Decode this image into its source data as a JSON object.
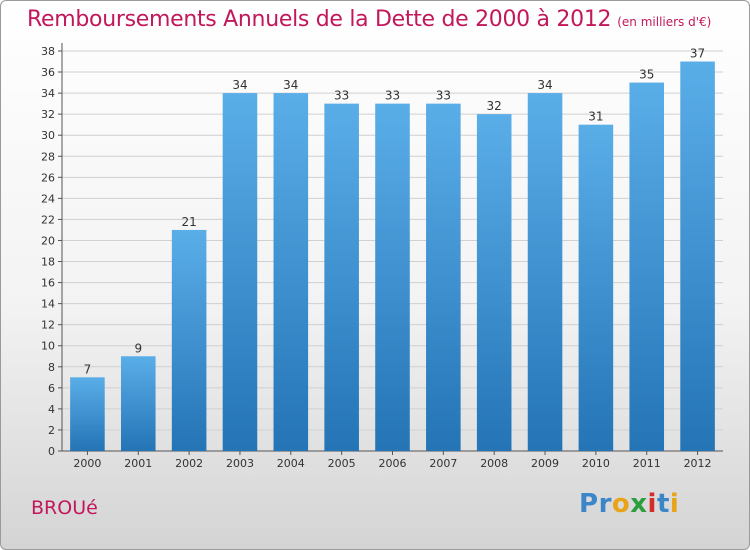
{
  "header": {
    "title": "Remboursements Annuels de la Dette de 2000 à 2012",
    "subtitle": "(en milliers d'€)"
  },
  "footer": {
    "commune": "BROUé",
    "logo_text": "Proxiti"
  },
  "colors": {
    "title": "#c2185b",
    "bar_top": "#5aaee8",
    "bar_bottom": "#2474b6",
    "logo_letters": [
      "#3a86c8",
      "#3a86c8",
      "#e8a317",
      "#2e9e3c",
      "#d52b2b",
      "#3a86c8",
      "#e8a317"
    ]
  },
  "chart_data": {
    "type": "bar",
    "categories": [
      "2000",
      "2001",
      "2002",
      "2003",
      "2004",
      "2005",
      "2006",
      "2007",
      "2008",
      "2009",
      "2010",
      "2011",
      "2012"
    ],
    "values": [
      7,
      9,
      21,
      34,
      34,
      33,
      33,
      33,
      32,
      34,
      31,
      35,
      37
    ],
    "title": "Remboursements Annuels de la Dette de 2000 à 2012",
    "subtitle": "(en milliers d'€)",
    "xlabel": "",
    "ylabel": "",
    "ylim": [
      0,
      38
    ],
    "yticks": [
      0,
      2,
      4,
      6,
      8,
      10,
      12,
      14,
      16,
      18,
      20,
      22,
      24,
      26,
      28,
      30,
      32,
      34,
      36,
      38
    ],
    "grid": true,
    "legend": "none"
  }
}
